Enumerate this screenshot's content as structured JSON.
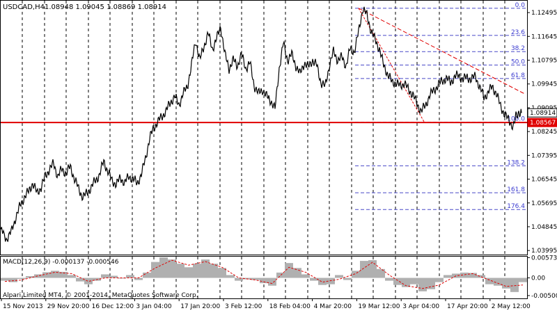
{
  "chart_data": {
    "type": "line",
    "symbol_label": "USDCAD,H4",
    "ohlc_label": "1.08948 1.09045 1.08869 1.08914",
    "y_ticks": [
      1.12495,
      1.11645,
      1.10795,
      1.09945,
      1.09095,
      1.08245,
      1.07395,
      1.06545,
      1.05695,
      1.04845,
      1.03995
    ],
    "y_tick_labels": [
      "1.12495",
      "1.11645",
      "1.10795",
      "1.09945",
      "1.09095",
      "1.08245",
      "1.07395",
      "1.06545",
      "1.05695",
      "1.04845",
      "1.03995"
    ],
    "ylim": [
      1.0385,
      1.1292
    ],
    "x_labels": [
      "15 Nov 2013",
      "29 Nov 20:00",
      "16 Dec 12:00",
      "3 Jan 04:00",
      "17 Jan 20:00",
      "3 Feb 12:00",
      "18 Feb 04:00",
      "4 Mar 20:00",
      "19 Mar 12:00",
      "3 Apr 04:00",
      "17 Apr 20:00",
      "2 May 12:00"
    ],
    "price_series": [
      [
        0,
        1.0475
      ],
      [
        8,
        1.044
      ],
      [
        15,
        1.0465
      ],
      [
        22,
        1.052
      ],
      [
        28,
        1.056
      ],
      [
        34,
        1.059
      ],
      [
        40,
        1.061
      ],
      [
        46,
        1.064
      ],
      [
        52,
        1.0605
      ],
      [
        58,
        1.0625
      ],
      [
        64,
        1.0665
      ],
      [
        70,
        1.069
      ],
      [
        76,
        1.071
      ],
      [
        82,
        1.0665
      ],
      [
        88,
        1.069
      ],
      [
        94,
        1.0675
      ],
      [
        100,
        1.07
      ],
      [
        106,
        1.0655
      ],
      [
        112,
        1.062
      ],
      [
        118,
        1.059
      ],
      [
        124,
        1.0605
      ],
      [
        130,
        1.0625
      ],
      [
        136,
        1.065
      ],
      [
        142,
        1.067
      ],
      [
        148,
        1.072
      ],
      [
        154,
        1.068
      ],
      [
        160,
        1.065
      ],
      [
        166,
        1.0635
      ],
      [
        172,
        1.066
      ],
      [
        178,
        1.064
      ],
      [
        184,
        1.0665
      ],
      [
        190,
        1.0655
      ],
      [
        196,
        1.064
      ],
      [
        202,
        1.067
      ],
      [
        208,
        1.073
      ],
      [
        214,
        1.08
      ],
      [
        220,
        1.084
      ],
      [
        226,
        1.086
      ],
      [
        232,
        1.088
      ],
      [
        238,
        1.09
      ],
      [
        244,
        1.093
      ],
      [
        250,
        1.095
      ],
      [
        256,
        1.092
      ],
      [
        262,
        1.096
      ],
      [
        268,
        1.0985
      ],
      [
        274,
        1.106
      ],
      [
        280,
        1.115
      ],
      [
        286,
        1.108
      ],
      [
        292,
        1.113
      ],
      [
        298,
        1.1175
      ],
      [
        304,
        1.112
      ],
      [
        310,
        1.1155
      ],
      [
        316,
        1.12
      ],
      [
        322,
        1.11
      ],
      [
        328,
        1.105
      ],
      [
        334,
        1.108
      ],
      [
        340,
        1.106
      ],
      [
        346,
        1.11
      ],
      [
        352,
        1.105
      ],
      [
        358,
        1.107
      ],
      [
        364,
        1.099
      ],
      [
        370,
        1.096
      ],
      [
        376,
        1.0975
      ],
      [
        382,
        1.095
      ],
      [
        388,
        1.0935
      ],
      [
        394,
        1.0905
      ],
      [
        400,
        1.105
      ],
      [
        406,
        1.114
      ],
      [
        412,
        1.108
      ],
      [
        418,
        1.11
      ],
      [
        424,
        1.106
      ],
      [
        430,
        1.103
      ],
      [
        436,
        1.107
      ],
      [
        442,
        1.1055
      ],
      [
        448,
        1.108
      ],
      [
        454,
        1.106
      ],
      [
        460,
        1.1
      ],
      [
        466,
        1.0985
      ],
      [
        472,
        1.106
      ],
      [
        478,
        1.111
      ],
      [
        484,
        1.108
      ],
      [
        490,
        1.109
      ],
      [
        496,
        1.106
      ],
      [
        502,
        1.112
      ],
      [
        508,
        1.111
      ],
      [
        514,
        1.118
      ],
      [
        520,
        1.1265
      ],
      [
        526,
        1.124
      ],
      [
        532,
        1.1185
      ],
      [
        538,
        1.115
      ],
      [
        544,
        1.112
      ],
      [
        550,
        1.106
      ],
      [
        556,
        1.103
      ],
      [
        562,
        1.1
      ],
      [
        568,
        1.1
      ],
      [
        574,
        1.0985
      ],
      [
        580,
        1.1
      ],
      [
        586,
        1.097
      ],
      [
        592,
        1.096
      ],
      [
        598,
        1.092
      ],
      [
        604,
        1.09
      ],
      [
        610,
        1.0915
      ],
      [
        616,
        1.0955
      ],
      [
        622,
        1.097
      ],
      [
        628,
        1.099
      ],
      [
        634,
        1.1005
      ],
      [
        640,
        1.1015
      ],
      [
        646,
        1.1
      ],
      [
        652,
        1.102
      ],
      [
        658,
        1.1025
      ],
      [
        664,
        1.101
      ],
      [
        670,
        1.102
      ],
      [
        676,
        1.101
      ],
      [
        682,
        1.1025
      ],
      [
        688,
        1.098
      ],
      [
        694,
        1.095
      ],
      [
        700,
        1.096
      ],
      [
        706,
        1.099
      ],
      [
        712,
        1.0955
      ],
      [
        718,
        1.092
      ],
      [
        724,
        1.088
      ],
      [
        730,
        1.087
      ],
      [
        736,
        1.0835
      ],
      [
        740,
        1.088
      ],
      [
        744,
        1.0895
      ],
      [
        748,
        1.0891
      ]
    ],
    "support_line": {
      "value": 1.08567,
      "label": "1.08567",
      "color": "#e00000"
    },
    "current_price": {
      "value": 1.08914,
      "label": "1.08914"
    },
    "trendline": {
      "from": [
        514,
        1.1265
      ],
      "to": [
        752,
        1.096
      ]
    },
    "fan_line": {
      "from": [
        514,
        1.1265
      ],
      "to": [
        608,
        1.086
      ]
    },
    "fibonacci_levels": [
      {
        "label": "0.0",
        "price": 1.1265
      },
      {
        "label": "23.6",
        "price": 1.1168
      },
      {
        "label": "38.2",
        "price": 1.111
      },
      {
        "label": "50.0",
        "price": 1.1062
      },
      {
        "label": "61.8",
        "price": 1.1014
      },
      {
        "label": "100.0",
        "price": 1.0858
      },
      {
        "label": "138.2",
        "price": 1.0702
      },
      {
        "label": "161.8",
        "price": 1.0606
      },
      {
        "label": "176.4",
        "price": 1.0546
      }
    ],
    "macd": {
      "label": "MACD(12,26,9) -0.000137 -0.000546",
      "y_ticks": [
        0.00573,
        0.0,
        -0.005
      ],
      "y_tick_labels": [
        "0.00573",
        "0.00",
        "-0.00500"
      ],
      "ylim": [
        -0.0058,
        0.006
      ],
      "histogram": [
        [
          0,
          -0.0008
        ],
        [
          12,
          -0.0012
        ],
        [
          24,
          -0.0003
        ],
        [
          36,
          0.0005
        ],
        [
          48,
          0.001
        ],
        [
          60,
          0.0016
        ],
        [
          72,
          0.002
        ],
        [
          84,
          0.0017
        ],
        [
          96,
          0.0008
        ],
        [
          108,
          -0.001
        ],
        [
          120,
          -0.0018
        ],
        [
          132,
          -0.0008
        ],
        [
          144,
          0.001
        ],
        [
          156,
          0.0006
        ],
        [
          168,
          -0.0002
        ],
        [
          180,
          0.0008
        ],
        [
          192,
          -0.0006
        ],
        [
          204,
          0.0015
        ],
        [
          216,
          0.0045
        ],
        [
          228,
          0.0058
        ],
        [
          240,
          0.0052
        ],
        [
          252,
          0.004
        ],
        [
          264,
          0.003
        ],
        [
          276,
          0.004
        ],
        [
          288,
          0.0052
        ],
        [
          300,
          0.004
        ],
        [
          312,
          0.0028
        ],
        [
          324,
          0.0008
        ],
        [
          336,
          -0.0008
        ],
        [
          348,
          -0.0004
        ],
        [
          360,
          -0.0006
        ],
        [
          372,
          -0.0015
        ],
        [
          384,
          -0.0022
        ],
        [
          396,
          0.0015
        ],
        [
          408,
          0.0042
        ],
        [
          420,
          0.0028
        ],
        [
          432,
          0.001
        ],
        [
          444,
          -0.0008
        ],
        [
          456,
          -0.002
        ],
        [
          468,
          -0.0018
        ],
        [
          480,
          0.0008
        ],
        [
          492,
          -0.0006
        ],
        [
          504,
          0.002
        ],
        [
          516,
          0.0048
        ],
        [
          528,
          0.005
        ],
        [
          540,
          0.0025
        ],
        [
          552,
          -0.0008
        ],
        [
          564,
          -0.002
        ],
        [
          576,
          -0.0026
        ],
        [
          588,
          -0.0018
        ],
        [
          600,
          -0.0038
        ],
        [
          612,
          -0.0032
        ],
        [
          624,
          -0.0012
        ],
        [
          636,
          0.0008
        ],
        [
          648,
          0.0012
        ],
        [
          660,
          0.0015
        ],
        [
          672,
          0.0014
        ],
        [
          684,
          0.0008
        ],
        [
          696,
          -0.0018
        ],
        [
          708,
          -0.0022
        ],
        [
          720,
          -0.003
        ],
        [
          732,
          -0.004
        ],
        [
          744,
          -0.0012
        ]
      ],
      "signal": [
        [
          0,
          -0.001
        ],
        [
          24,
          -0.0006
        ],
        [
          48,
          0.0006
        ],
        [
          72,
          0.0016
        ],
        [
          96,
          0.0012
        ],
        [
          120,
          -0.001
        ],
        [
          144,
          0.0
        ],
        [
          168,
          0.0
        ],
        [
          192,
          0.0
        ],
        [
          216,
          0.0028
        ],
        [
          240,
          0.005
        ],
        [
          264,
          0.0036
        ],
        [
          288,
          0.0046
        ],
        [
          312,
          0.003
        ],
        [
          336,
          0.0
        ],
        [
          360,
          -0.0006
        ],
        [
          384,
          -0.0016
        ],
        [
          408,
          0.003
        ],
        [
          432,
          0.0016
        ],
        [
          456,
          -0.0012
        ],
        [
          480,
          -0.0004
        ],
        [
          504,
          0.0012
        ],
        [
          528,
          0.0044
        ],
        [
          552,
          0.0008
        ],
        [
          576,
          -0.0022
        ],
        [
          600,
          -0.003
        ],
        [
          624,
          -0.002
        ],
        [
          648,
          0.0006
        ],
        [
          672,
          0.0012
        ],
        [
          696,
          -0.0006
        ],
        [
          720,
          -0.0024
        ],
        [
          744,
          -0.002
        ]
      ]
    },
    "copyright": "Alpari Limited MT4, © 2001-2014, MetaQuotes Software Corp."
  }
}
